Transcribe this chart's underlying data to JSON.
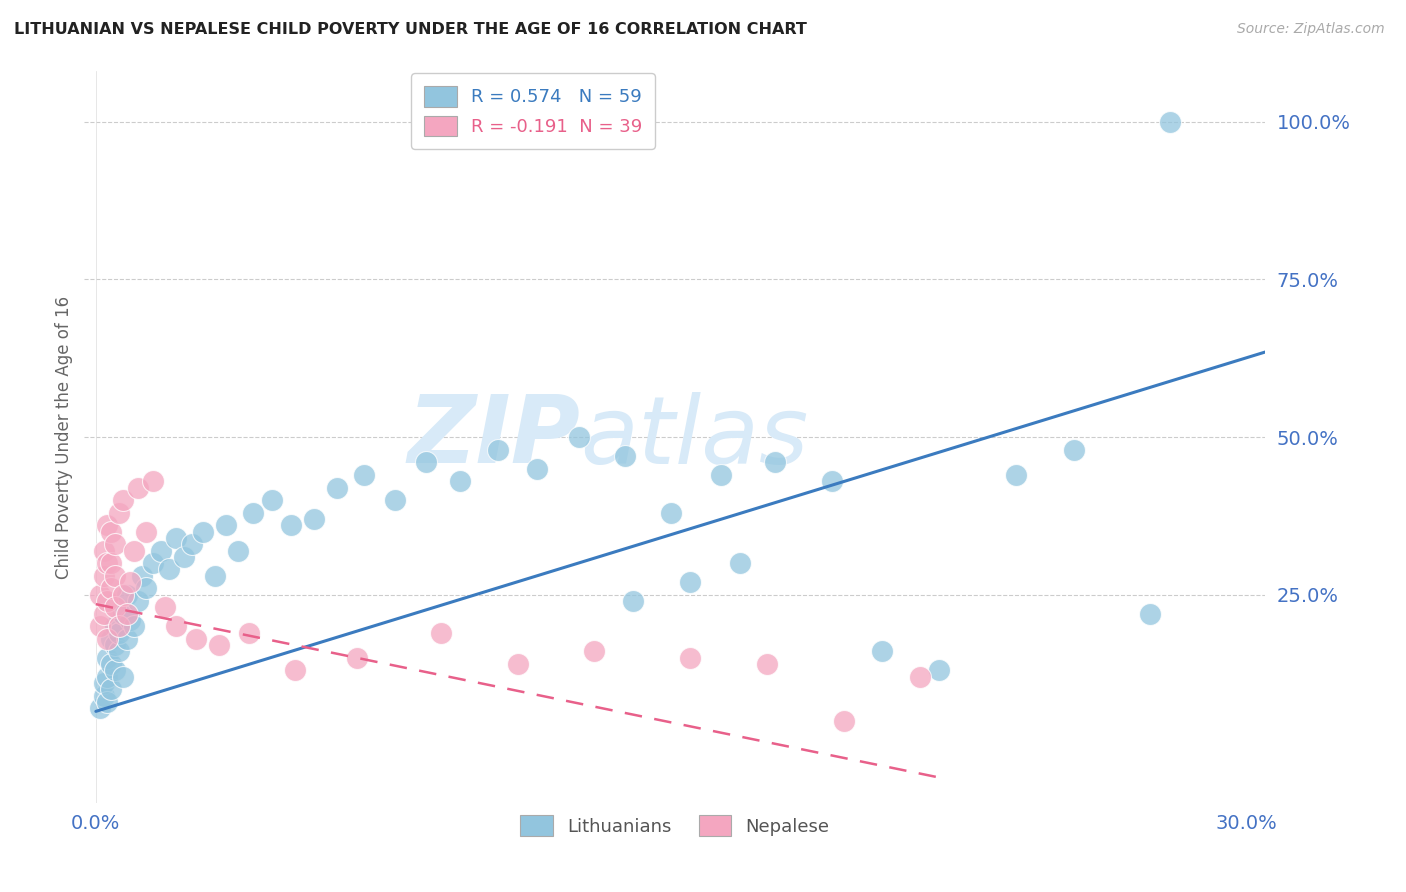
{
  "title": "LITHUANIAN VS NEPALESE CHILD POVERTY UNDER THE AGE OF 16 CORRELATION CHART",
  "source": "Source: ZipAtlas.com",
  "ylabel": "Child Poverty Under the Age of 16",
  "xlim": [
    -0.003,
    0.305
  ],
  "ylim": [
    -0.08,
    1.08
  ],
  "yticks": [
    0.0,
    0.25,
    0.5,
    0.75,
    1.0
  ],
  "ytick_labels": [
    "",
    "25.0%",
    "50.0%",
    "75.0%",
    "100.0%"
  ],
  "xtick_pos": [
    0.0,
    0.3
  ],
  "xtick_labels": [
    "0.0%",
    "30.0%"
  ],
  "legend_blue_label": "R = 0.574   N = 59",
  "legend_pink_label": "R = -0.191  N = 39",
  "legend_bottom_blue": "Lithuanians",
  "legend_bottom_pink": "Nepalese",
  "blue_color": "#92c5de",
  "pink_color": "#f4a6c0",
  "blue_line_color": "#3b7bbf",
  "pink_line_color": "#e8608a",
  "axis_label_color": "#4472c4",
  "ylabel_color": "#666666",
  "blue_trend_x": [
    0.0,
    0.305
  ],
  "blue_trend_y": [
    0.065,
    0.635
  ],
  "pink_trend_x": [
    0.0,
    0.22
  ],
  "pink_trend_y": [
    0.235,
    -0.04
  ],
  "blue_x": [
    0.001,
    0.002,
    0.002,
    0.003,
    0.003,
    0.003,
    0.004,
    0.004,
    0.004,
    0.005,
    0.005,
    0.005,
    0.006,
    0.006,
    0.007,
    0.007,
    0.008,
    0.008,
    0.009,
    0.01,
    0.011,
    0.012,
    0.013,
    0.015,
    0.017,
    0.019,
    0.021,
    0.023,
    0.025,
    0.028,
    0.031,
    0.034,
    0.037,
    0.041,
    0.046,
    0.051,
    0.057,
    0.063,
    0.07,
    0.078,
    0.086,
    0.095,
    0.105,
    0.115,
    0.126,
    0.138,
    0.15,
    0.163,
    0.177,
    0.192,
    0.14,
    0.155,
    0.168,
    0.205,
    0.22,
    0.24,
    0.255,
    0.275,
    0.28
  ],
  "blue_y": [
    0.07,
    0.09,
    0.11,
    0.08,
    0.12,
    0.15,
    0.1,
    0.14,
    0.18,
    0.13,
    0.17,
    0.2,
    0.16,
    0.19,
    0.12,
    0.22,
    0.18,
    0.25,
    0.21,
    0.2,
    0.24,
    0.28,
    0.26,
    0.3,
    0.32,
    0.29,
    0.34,
    0.31,
    0.33,
    0.35,
    0.28,
    0.36,
    0.32,
    0.38,
    0.4,
    0.36,
    0.37,
    0.42,
    0.44,
    0.4,
    0.46,
    0.43,
    0.48,
    0.45,
    0.5,
    0.47,
    0.38,
    0.44,
    0.46,
    0.43,
    0.24,
    0.27,
    0.3,
    0.16,
    0.13,
    0.44,
    0.48,
    0.22,
    1.0
  ],
  "pink_x": [
    0.001,
    0.001,
    0.002,
    0.002,
    0.002,
    0.003,
    0.003,
    0.003,
    0.003,
    0.004,
    0.004,
    0.004,
    0.005,
    0.005,
    0.005,
    0.006,
    0.006,
    0.007,
    0.007,
    0.008,
    0.009,
    0.01,
    0.011,
    0.013,
    0.015,
    0.018,
    0.021,
    0.026,
    0.032,
    0.04,
    0.052,
    0.068,
    0.09,
    0.11,
    0.13,
    0.155,
    0.175,
    0.195,
    0.215
  ],
  "pink_y": [
    0.2,
    0.25,
    0.22,
    0.28,
    0.32,
    0.18,
    0.24,
    0.3,
    0.36,
    0.26,
    0.3,
    0.35,
    0.23,
    0.28,
    0.33,
    0.2,
    0.38,
    0.25,
    0.4,
    0.22,
    0.27,
    0.32,
    0.42,
    0.35,
    0.43,
    0.23,
    0.2,
    0.18,
    0.17,
    0.19,
    0.13,
    0.15,
    0.19,
    0.14,
    0.16,
    0.15,
    0.14,
    0.05,
    0.12
  ]
}
